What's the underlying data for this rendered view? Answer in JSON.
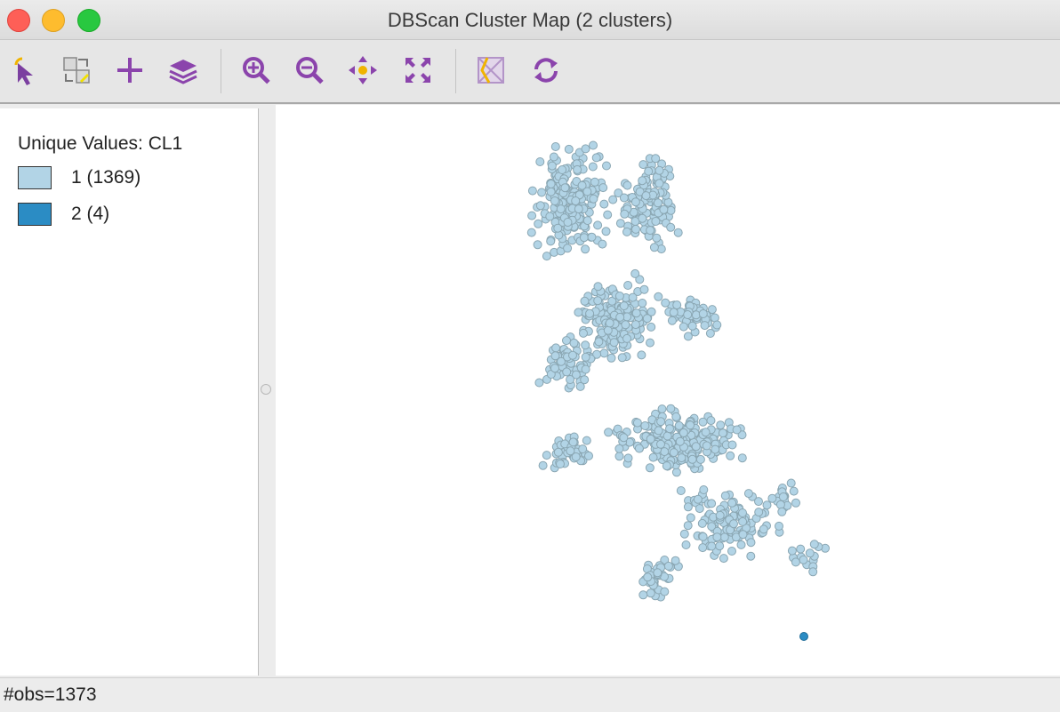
{
  "window": {
    "title": "DBScan Cluster Map (2 clusters)"
  },
  "toolbar": {
    "buttons": [
      {
        "name": "select-tool",
        "icon": "pointer-arrow-icon"
      },
      {
        "name": "selection-shape",
        "icon": "select-shape-icon"
      },
      {
        "name": "add-layer",
        "icon": "plus-icon"
      },
      {
        "name": "layers",
        "icon": "layers-icon"
      },
      {
        "name": "zoom-in",
        "icon": "zoom-in-icon"
      },
      {
        "name": "zoom-out",
        "icon": "zoom-out-icon"
      },
      {
        "name": "pan",
        "icon": "pan-arrows-icon"
      },
      {
        "name": "full-extent",
        "icon": "full-extent-icon"
      },
      {
        "name": "basemap",
        "icon": "basemap-icon"
      },
      {
        "name": "refresh",
        "icon": "refresh-icon"
      }
    ],
    "accent_color": "#8b44ac"
  },
  "legend": {
    "title": "Unique Values: CL1",
    "categories": [
      {
        "label": "1 (1369)",
        "color": "#b2d4e6"
      },
      {
        "label": "2 (4)",
        "color": "#2b8cc4"
      }
    ]
  },
  "map": {
    "cluster_colors": {
      "1": "#b2d4e6",
      "2": "#2b8cc4"
    },
    "point_outline": "#8aa6b2"
  },
  "status": {
    "text": "#obs=1373"
  }
}
